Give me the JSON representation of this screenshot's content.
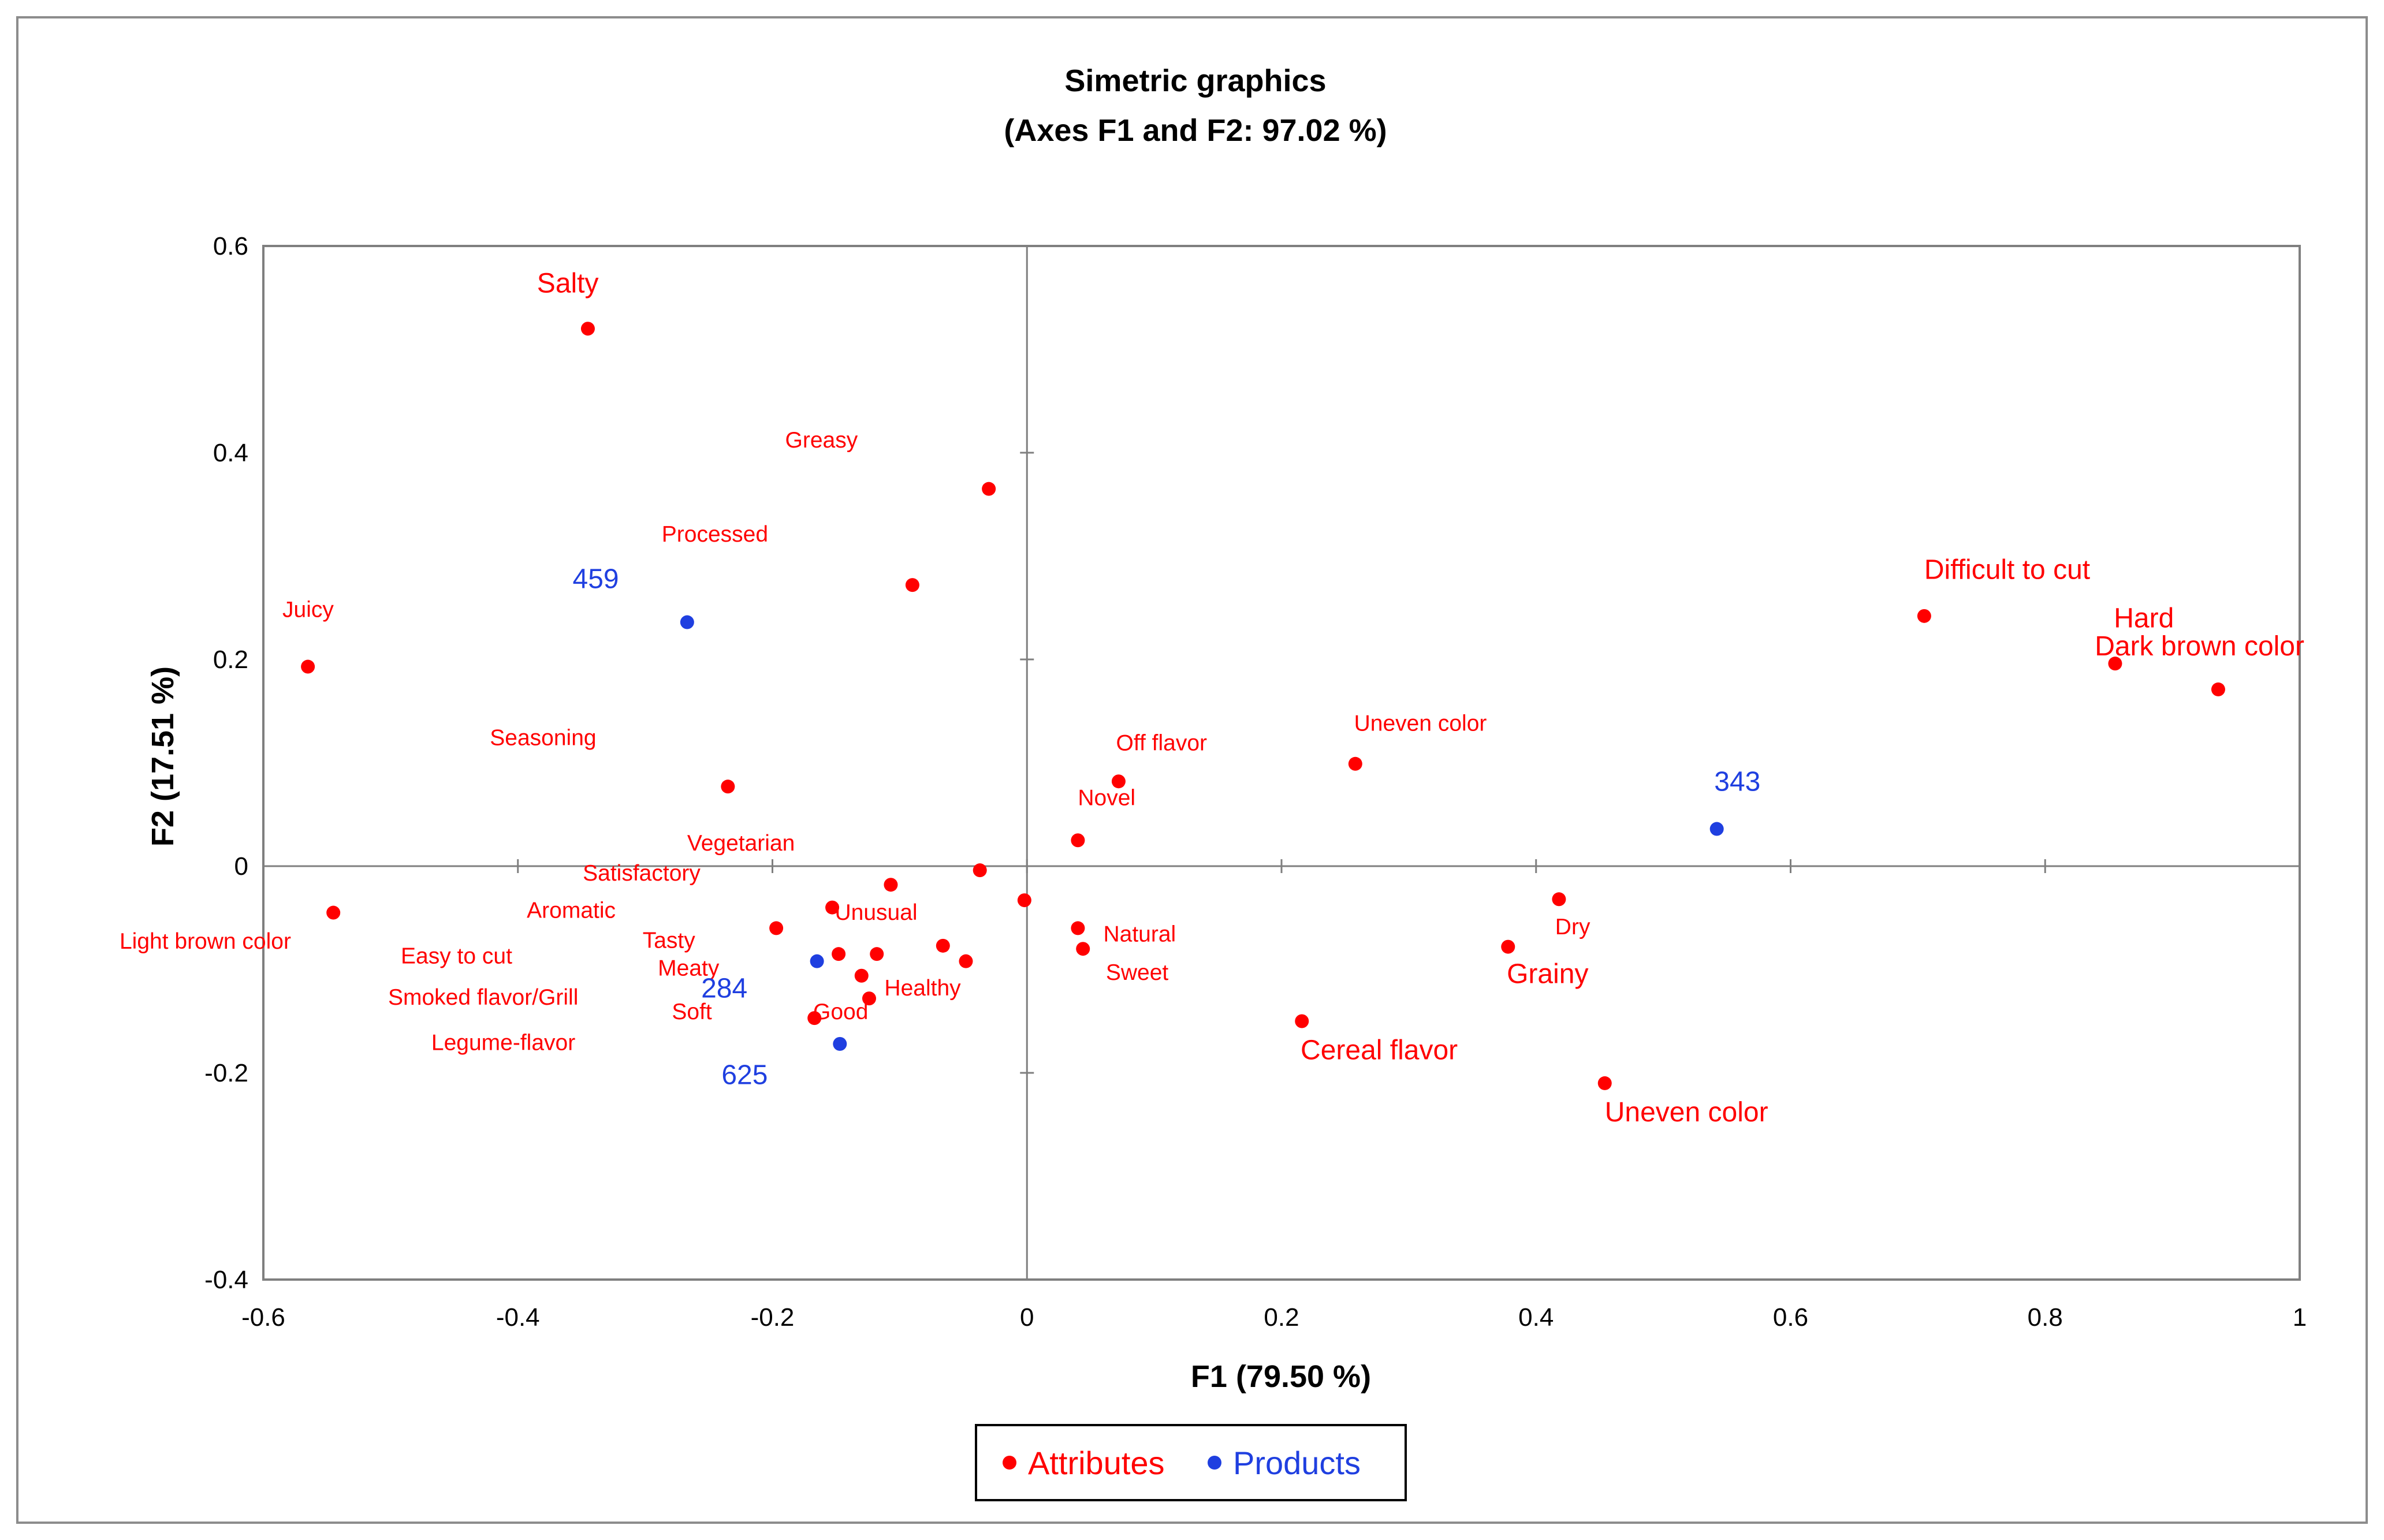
{
  "colors": {
    "attributes": "#ff0000",
    "products": "#1f3fe0",
    "axis": "#7f7f7f",
    "frame": "#000000"
  },
  "chart_data": {
    "type": "scatter",
    "title": "Simetric graphics",
    "subtitle": "(Axes F1 and F2: 97.02 %)",
    "xlabel": "F1 (79.50 %)",
    "ylabel": "F2 (17.51 %)",
    "xlim": [
      -0.6,
      1
    ],
    "ylim": [
      -0.4,
      0.6
    ],
    "xticks": [
      "-0.6",
      "-0.4",
      "-0.2",
      "0",
      "0.2",
      "0.4",
      "0.6",
      "0.8",
      "1"
    ],
    "yticks": [
      "-0.4",
      "-0.2",
      "0",
      "0.2",
      "0.4",
      "0.6"
    ],
    "legend": {
      "position": "bottom-center",
      "items": [
        "Attributes",
        "Products"
      ]
    },
    "series": [
      {
        "name": "Attributes",
        "points": [
          {
            "x": -0.345,
            "y": 0.52
          },
          {
            "x": -0.03,
            "y": 0.365
          },
          {
            "x": -0.09,
            "y": 0.272
          },
          {
            "x": -0.565,
            "y": 0.193
          },
          {
            "x": -0.235,
            "y": 0.077
          },
          {
            "x": 0.072,
            "y": 0.082
          },
          {
            "x": 0.258,
            "y": 0.099
          },
          {
            "x": 0.04,
            "y": 0.025
          },
          {
            "x": -0.037,
            "y": -0.004
          },
          {
            "x": -0.107,
            "y": -0.018
          },
          {
            "x": -0.545,
            "y": -0.045
          },
          {
            "x": -0.197,
            "y": -0.06
          },
          {
            "x": -0.153,
            "y": -0.04
          },
          {
            "x": -0.148,
            "y": -0.085
          },
          {
            "x": -0.118,
            "y": -0.085
          },
          {
            "x": -0.066,
            "y": -0.077
          },
          {
            "x": -0.048,
            "y": -0.092
          },
          {
            "x": -0.13,
            "y": -0.106
          },
          {
            "x": -0.124,
            "y": -0.128
          },
          {
            "x": -0.167,
            "y": -0.147
          },
          {
            "x": -0.002,
            "y": -0.033
          },
          {
            "x": 0.04,
            "y": -0.06
          },
          {
            "x": 0.044,
            "y": -0.08
          },
          {
            "x": 0.418,
            "y": -0.032
          },
          {
            "x": 0.378,
            "y": -0.078
          },
          {
            "x": 0.216,
            "y": -0.15
          },
          {
            "x": 0.454,
            "y": -0.21
          },
          {
            "x": 0.705,
            "y": 0.242
          },
          {
            "x": 0.855,
            "y": 0.196
          },
          {
            "x": 0.936,
            "y": 0.171
          }
        ]
      },
      {
        "name": "Products",
        "points": [
          {
            "x": -0.267,
            "y": 0.236
          },
          {
            "x": 0.542,
            "y": 0.036
          },
          {
            "x": -0.165,
            "y": -0.092
          },
          {
            "x": -0.147,
            "y": -0.172
          }
        ]
      }
    ],
    "annotations": [
      {
        "text": "Salty",
        "x": -0.385,
        "y": 0.555,
        "series": "Attributes",
        "size": "large"
      },
      {
        "text": "Greasy",
        "x": -0.19,
        "y": 0.405,
        "series": "Attributes",
        "size": "small"
      },
      {
        "text": "Processed",
        "x": -0.287,
        "y": 0.314,
        "series": "Attributes",
        "size": "small"
      },
      {
        "text": "Juicy",
        "x": -0.585,
        "y": 0.241,
        "series": "Attributes",
        "size": "small"
      },
      {
        "text": "Seasoning",
        "x": -0.422,
        "y": 0.117,
        "series": "Attributes",
        "size": "small"
      },
      {
        "text": "Vegetarian",
        "x": -0.267,
        "y": 0.015,
        "series": "Attributes",
        "size": "small"
      },
      {
        "text": "Satisfactory",
        "x": -0.349,
        "y": -0.014,
        "series": "Attributes",
        "size": "small"
      },
      {
        "text": "Aromatic",
        "x": -0.393,
        "y": -0.05,
        "series": "Attributes",
        "size": "small"
      },
      {
        "text": "Light brown color",
        "x": -0.713,
        "y": -0.08,
        "series": "Attributes",
        "size": "small"
      },
      {
        "text": "Easy to cut",
        "x": -0.492,
        "y": -0.094,
        "series": "Attributes",
        "size": "small"
      },
      {
        "text": "Tasty",
        "x": -0.302,
        "y": -0.079,
        "series": "Attributes",
        "size": "small"
      },
      {
        "text": "Meaty",
        "x": -0.29,
        "y": -0.106,
        "series": "Attributes",
        "size": "small"
      },
      {
        "text": "Smoked flavor/Grill",
        "x": -0.502,
        "y": -0.134,
        "series": "Attributes",
        "size": "small"
      },
      {
        "text": "Soft",
        "x": -0.279,
        "y": -0.148,
        "series": "Attributes",
        "size": "small"
      },
      {
        "text": "Good",
        "x": -0.168,
        "y": -0.148,
        "series": "Attributes",
        "size": "small"
      },
      {
        "text": "Healthy",
        "x": -0.112,
        "y": -0.125,
        "series": "Attributes",
        "size": "small"
      },
      {
        "text": "Unusual",
        "x": -0.151,
        "y": -0.052,
        "series": "Attributes",
        "size": "small"
      },
      {
        "text": "Legume-flavor",
        "x": -0.468,
        "y": -0.178,
        "series": "Attributes",
        "size": "small"
      },
      {
        "text": "Off flavor",
        "x": 0.07,
        "y": 0.112,
        "series": "Attributes",
        "size": "small"
      },
      {
        "text": "Uneven color",
        "x": 0.257,
        "y": 0.131,
        "series": "Attributes",
        "size": "small"
      },
      {
        "text": "Novel",
        "x": 0.04,
        "y": 0.059,
        "series": "Attributes",
        "size": "small"
      },
      {
        "text": "Natural",
        "x": 0.06,
        "y": -0.073,
        "series": "Attributes",
        "size": "small"
      },
      {
        "text": "Sweet",
        "x": 0.062,
        "y": -0.11,
        "series": "Attributes",
        "size": "small"
      },
      {
        "text": "Dry",
        "x": 0.415,
        "y": -0.066,
        "series": "Attributes",
        "size": "small"
      },
      {
        "text": "Grainy",
        "x": 0.377,
        "y": -0.113,
        "series": "Attributes",
        "size": "large"
      },
      {
        "text": "Cereal flavor",
        "x": 0.215,
        "y": -0.187,
        "series": "Attributes",
        "size": "large"
      },
      {
        "text": "Uneven color",
        "x": 0.454,
        "y": -0.247,
        "series": "Attributes",
        "size": "large"
      },
      {
        "text": "Difficult to cut",
        "x": 0.705,
        "y": 0.278,
        "series": "Attributes",
        "size": "large"
      },
      {
        "text": "Hard",
        "x": 0.854,
        "y": 0.231,
        "series": "Attributes",
        "size": "large"
      },
      {
        "text": "Dark brown color",
        "x": 0.839,
        "y": 0.204,
        "series": "Attributes",
        "size": "large"
      },
      {
        "text": "459",
        "x": -0.357,
        "y": 0.269,
        "series": "Products",
        "size": "large"
      },
      {
        "text": "343",
        "x": 0.54,
        "y": 0.073,
        "series": "Products",
        "size": "large"
      },
      {
        "text": "284",
        "x": -0.256,
        "y": -0.127,
        "series": "Products",
        "size": "large"
      },
      {
        "text": "625",
        "x": -0.24,
        "y": -0.211,
        "series": "Products",
        "size": "large"
      }
    ]
  }
}
